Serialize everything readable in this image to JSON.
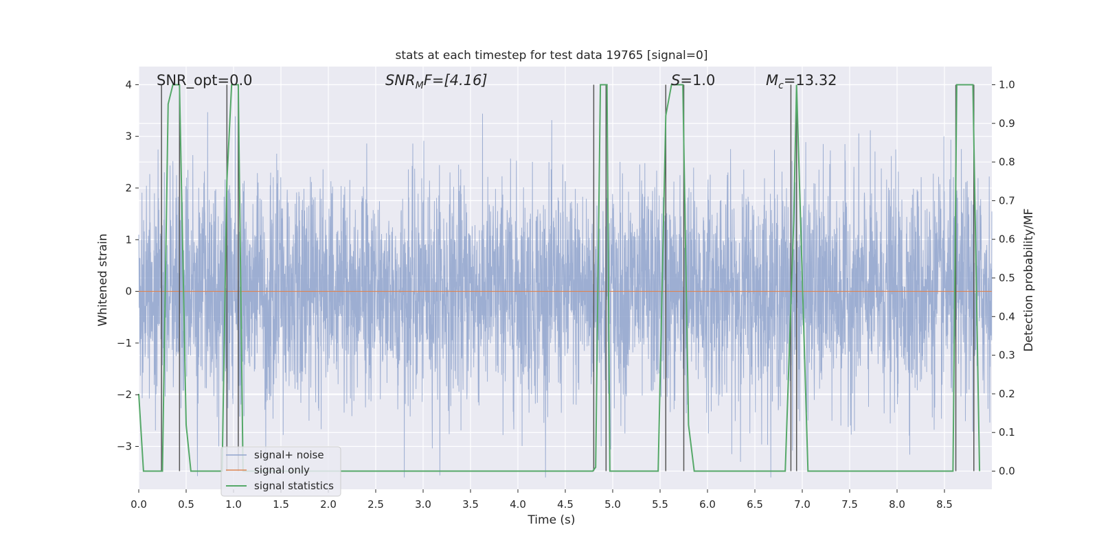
{
  "chart_data": {
    "type": "line",
    "title": "stats at each timestep for test data 19765 [signal=0]",
    "xlabel": "Time (s)",
    "ylabel": "Whitened strain",
    "y2label": "Detection probability/MF",
    "xlim": [
      0.0,
      9.0
    ],
    "ylim": [
      -3.83,
      4.35
    ],
    "y2lim": [
      -0.047,
      1.047
    ],
    "xticks": [
      0.0,
      0.5,
      1.0,
      1.5,
      2.0,
      2.5,
      3.0,
      3.5,
      4.0,
      4.5,
      5.0,
      5.5,
      6.0,
      6.5,
      7.0,
      7.5,
      8.0,
      8.5
    ],
    "xtick_labels": [
      "0.0",
      "0.5",
      "1.0",
      "1.5",
      "2.0",
      "2.5",
      "3.0",
      "3.5",
      "4.0",
      "4.5",
      "5.0",
      "5.5",
      "6.0",
      "6.5",
      "7.0",
      "7.5",
      "8.0",
      "8.5"
    ],
    "yticks": [
      -3,
      -2,
      -1,
      0,
      1,
      2,
      3,
      4
    ],
    "ytick_labels": [
      "−3",
      "−2",
      "−1",
      "0",
      "1",
      "2",
      "3",
      "4"
    ],
    "y2ticks": [
      0.0,
      0.1,
      0.2,
      0.3,
      0.4,
      0.5,
      0.6,
      0.7,
      0.8,
      0.9,
      1.0
    ],
    "y2tick_labels": [
      "0.0",
      "0.1",
      "0.2",
      "0.3",
      "0.4",
      "0.5",
      "0.6",
      "0.7",
      "0.8",
      "0.9",
      "1.0"
    ],
    "annotations": {
      "snr_opt": "SNR_opt=0.0",
      "snr_mf_prefix": "SNR",
      "snr_mf_sub": "M",
      "snr_mf_suffix": "F=[4.16]",
      "s_symbol": "S",
      "s_value": "=1.0",
      "mc_symbol": "M",
      "mc_sub": "c",
      "mc_value": "=13.32"
    },
    "legend": {
      "location": "lower-left",
      "entries": [
        "signal+ noise",
        "signal only",
        "signal statistics"
      ]
    },
    "series": [
      {
        "name": "signal+ noise",
        "axis": "left",
        "color": "#8fa3cc",
        "description_range": [
          -3.6,
          4.0
        ],
        "noise_sigma": 1.0,
        "seed": 19765
      },
      {
        "name": "signal only",
        "axis": "left",
        "color": "#dd8452",
        "x": [
          0.0,
          9.0
        ],
        "y": [
          0.0,
          0.0
        ]
      },
      {
        "name": "signal statistics",
        "axis": "right",
        "color": "#55a868",
        "x": [
          0.0,
          0.05,
          0.25,
          0.31,
          0.36,
          0.43,
          0.5,
          0.55,
          0.88,
          0.93,
          0.98,
          1.05,
          1.1,
          4.79,
          4.82,
          4.87,
          4.94,
          4.97,
          5.03,
          5.48,
          5.56,
          5.62,
          5.74,
          5.8,
          5.86,
          5.99,
          6.82,
          6.91,
          6.94,
          7.06,
          8.59,
          8.63,
          8.68,
          8.8,
          8.87
        ],
        "y": [
          0.2,
          0.0,
          0.0,
          0.95,
          1.0,
          1.0,
          0.12,
          0.0,
          0.0,
          0.75,
          1.0,
          1.0,
          0.0,
          0.0,
          0.01,
          1.0,
          1.0,
          0.0,
          0.0,
          0.0,
          0.92,
          1.0,
          1.0,
          0.12,
          0.0,
          0.0,
          0.0,
          0.65,
          1.0,
          0.0,
          0.0,
          1.0,
          1.0,
          1.0,
          0.0
        ]
      }
    ],
    "event_lines_x": [
      0.24,
      0.43,
      0.93,
      1.05,
      4.8,
      4.93,
      5.56,
      5.75,
      6.88,
      6.94,
      8.62,
      8.81
    ],
    "colors": {
      "axes_bg": "#eaeaf2",
      "grid": "#ffffff",
      "event_line": "#555555",
      "text": "#262626"
    }
  }
}
